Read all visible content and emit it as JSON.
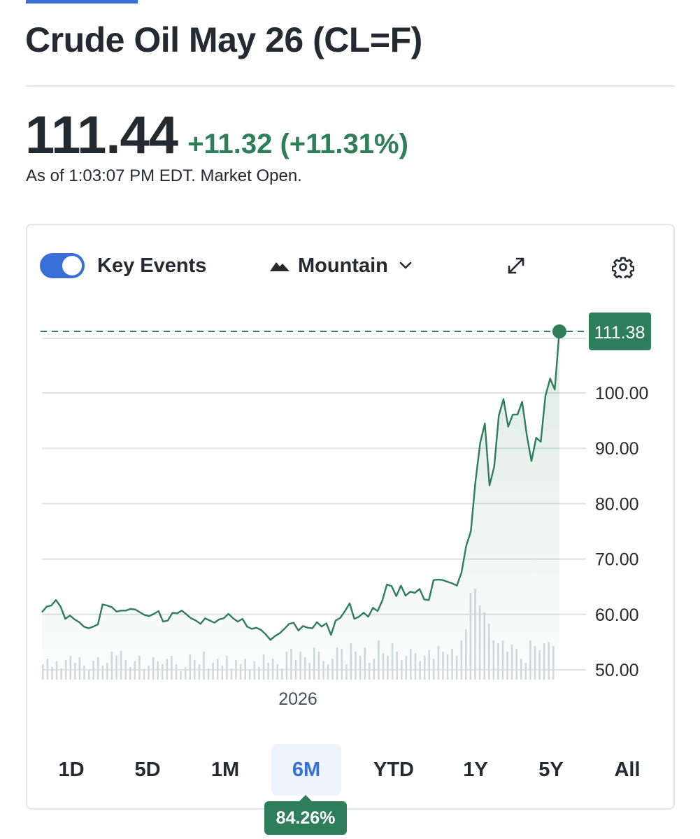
{
  "page": {
    "title": "Crude Oil May 26 (CL=F)",
    "price": "111.44",
    "change": "+11.32 (+11.31%)",
    "as_of": "As of 1:03:07 PM EDT. Market Open."
  },
  "toolbar": {
    "key_events_label": "Key Events",
    "key_events_on": true,
    "chart_type_label": "Mountain",
    "icons": [
      "mountain-icon",
      "chevron-down-icon",
      "expand-icon",
      "gear-icon"
    ]
  },
  "ranges": [
    {
      "label": "1D"
    },
    {
      "label": "5D"
    },
    {
      "label": "1M"
    },
    {
      "label": "6M",
      "active": true
    },
    {
      "label": "YTD"
    },
    {
      "label": "1Y"
    },
    {
      "label": "5Y"
    },
    {
      "label": "All"
    }
  ],
  "range_return": "84.26%",
  "colors": {
    "accent": "#3a6fd8",
    "up": "#2e7d5b",
    "line": "#2e7d5b",
    "volume": "#d4d8dd",
    "grid": "#dfe3e7"
  },
  "chart_data": {
    "type": "area",
    "title": "",
    "xlabel": "",
    "ylabel": "",
    "ylim": [
      49,
      112.5
    ],
    "y_ticks": [
      "50.00",
      "60.00",
      "70.00",
      "80.00",
      "90.00",
      "100.00"
    ],
    "x_tick_labels": [
      "2026"
    ],
    "last_value_label": "111.38",
    "grid": true,
    "series": [
      {
        "values": [
          60.4,
          61.4,
          61.6,
          62.6,
          61.4,
          59.2,
          59.8,
          59.1,
          58.6,
          57.8,
          57.5,
          57.8,
          58.2,
          61.8,
          61.6,
          61.3,
          60.5,
          60.7,
          60.7,
          61.0,
          60.9,
          60.4,
          59.9,
          59.7,
          60.1,
          60.6,
          58.7,
          58.9,
          60.3,
          60.2,
          60.7,
          60.0,
          59.3,
          58.9,
          58.3,
          59.3,
          58.9,
          58.5,
          59.1,
          59.3,
          60.1,
          59.3,
          58.7,
          59.2,
          57.8,
          57.4,
          57.6,
          57.2,
          56.4,
          55.4,
          56.1,
          56.6,
          57.4,
          58.3,
          58.5,
          57.1,
          57.9,
          57.6,
          57.5,
          58.6,
          57.8,
          58.4,
          56.3,
          58.9,
          59.4,
          60.6,
          62.0,
          59.2,
          59.6,
          60.3,
          59.6,
          61.2,
          60.6,
          62.5,
          65.4,
          65.1,
          63.3,
          65.2,
          63.4,
          64.1,
          63.9,
          64.6,
          62.7,
          62.6,
          66.2,
          66.3,
          66.2,
          65.9,
          65.6,
          65.2,
          67.6,
          72.4,
          75.0,
          84.1,
          91.0,
          94.5,
          83.3,
          86.7,
          95.9,
          98.9,
          93.9,
          96.1,
          96.1,
          98.4,
          92.4,
          87.7,
          91.9,
          91.2,
          99.5,
          102.6,
          100.6,
          111.38
        ]
      }
    ],
    "volume": [
      22,
      30,
      18,
      26,
      16,
      28,
      34,
      24,
      32,
      20,
      14,
      27,
      32,
      20,
      24,
      40,
      34,
      41,
      28,
      18,
      26,
      34,
      14,
      20,
      32,
      26,
      22,
      30,
      34,
      22,
      12,
      18,
      36,
      28,
      22,
      40,
      16,
      24,
      30,
      20,
      34,
      16,
      28,
      22,
      30,
      14,
      26,
      18,
      36,
      24,
      30,
      22,
      16,
      40,
      44,
      28,
      40,
      32,
      24,
      46,
      40,
      26,
      22,
      30,
      46,
      44,
      22,
      52,
      40,
      34,
      46,
      24,
      30,
      56,
      38,
      34,
      52,
      40,
      28,
      34,
      44,
      38,
      26,
      34,
      42,
      30,
      48,
      40,
      36,
      44,
      34,
      56,
      72,
      124,
      130,
      106,
      96,
      80,
      56,
      52,
      56,
      40,
      50,
      44,
      30,
      24,
      56,
      48,
      42,
      52,
      54,
      48
    ]
  }
}
